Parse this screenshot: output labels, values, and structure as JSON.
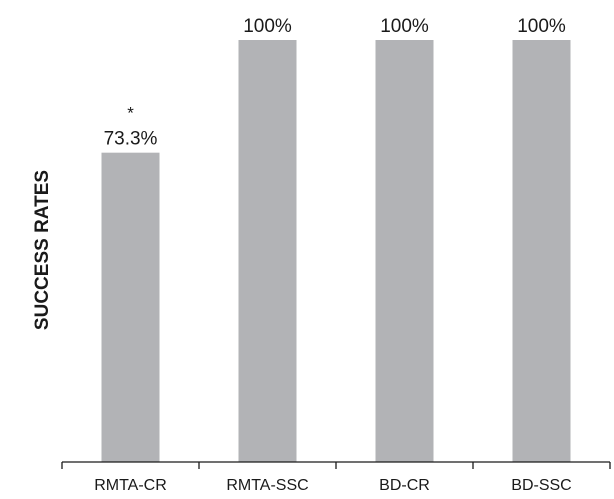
{
  "chart_data": {
    "type": "bar",
    "title": "",
    "xlabel": "",
    "ylabel": "SUCCESS RATES",
    "categories": [
      "RMTA-CR",
      "RMTA-SSC",
      "BD-CR",
      "BD-SSC"
    ],
    "values": [
      73.3,
      100,
      100,
      100
    ],
    "data_labels": [
      "73.3%",
      "100%",
      "100%",
      "100%"
    ],
    "annotations": [
      "*",
      "",
      "",
      ""
    ],
    "ylim": [
      0,
      100
    ],
    "grid": false,
    "legend": "none",
    "bar_color": "#b2b3b6",
    "axis_color": "#1a1a1a"
  }
}
